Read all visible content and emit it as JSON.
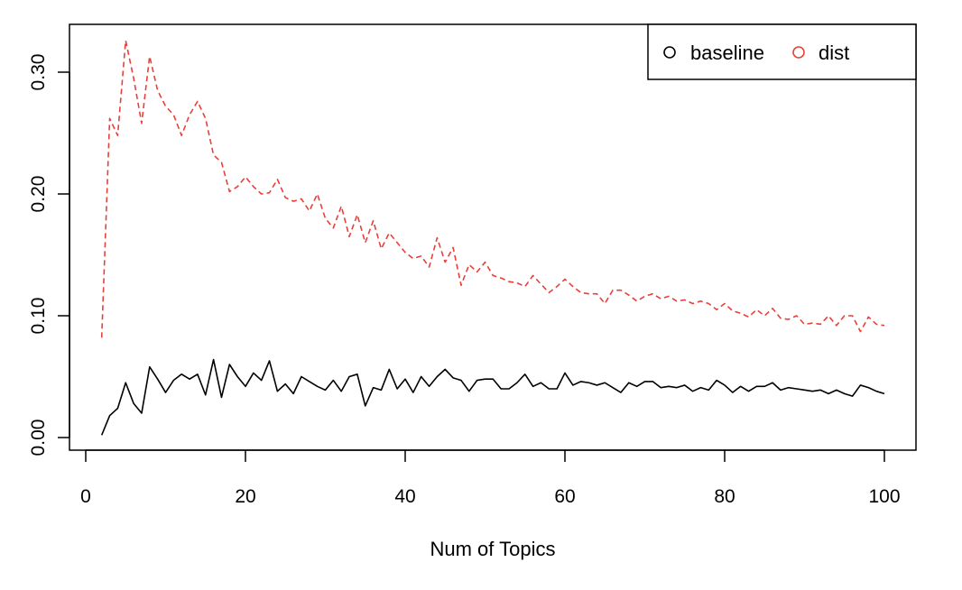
{
  "chart_data": {
    "type": "line",
    "title": "",
    "xlabel": "Num of Topics",
    "ylabel": "",
    "xlim": [
      0,
      100
    ],
    "ylim": [
      0,
      0.3
    ],
    "x_ticks": [
      0,
      20,
      40,
      60,
      80,
      100
    ],
    "y_ticks": [
      0.0,
      0.1,
      0.2,
      0.3
    ],
    "x_tick_labels": [
      "0",
      "20",
      "40",
      "60",
      "80",
      "100"
    ],
    "y_tick_labels": [
      "0.00",
      "0.10",
      "0.20",
      "0.30"
    ],
    "grid": false,
    "legend_position": "top-right",
    "x": [
      2,
      3,
      4,
      5,
      6,
      7,
      8,
      9,
      10,
      11,
      12,
      13,
      14,
      15,
      16,
      17,
      18,
      19,
      20,
      21,
      22,
      23,
      24,
      25,
      26,
      27,
      28,
      29,
      30,
      31,
      32,
      33,
      34,
      35,
      36,
      37,
      38,
      39,
      40,
      41,
      42,
      43,
      44,
      45,
      46,
      47,
      48,
      49,
      50,
      51,
      52,
      53,
      54,
      55,
      56,
      57,
      58,
      59,
      60,
      61,
      62,
      63,
      64,
      65,
      66,
      67,
      68,
      69,
      70,
      71,
      72,
      73,
      74,
      75,
      76,
      77,
      78,
      79,
      80,
      81,
      82,
      83,
      84,
      85,
      86,
      87,
      88,
      89,
      90,
      91,
      92,
      93,
      94,
      95,
      96,
      97,
      98,
      99,
      100
    ],
    "series": [
      {
        "name": "baseline",
        "color": "#000000",
        "dash": "solid",
        "values": [
          0.002,
          0.018,
          0.024,
          0.045,
          0.028,
          0.02,
          0.058,
          0.048,
          0.037,
          0.047,
          0.052,
          0.048,
          0.052,
          0.035,
          0.064,
          0.033,
          0.06,
          0.05,
          0.042,
          0.053,
          0.047,
          0.063,
          0.038,
          0.044,
          0.036,
          0.05,
          0.046,
          0.042,
          0.039,
          0.047,
          0.038,
          0.05,
          0.052,
          0.026,
          0.041,
          0.039,
          0.056,
          0.04,
          0.048,
          0.037,
          0.05,
          0.042,
          0.05,
          0.056,
          0.049,
          0.047,
          0.038,
          0.047,
          0.048,
          0.048,
          0.04,
          0.04,
          0.045,
          0.052,
          0.042,
          0.045,
          0.04,
          0.04,
          0.053,
          0.043,
          0.046,
          0.045,
          0.043,
          0.045,
          0.041,
          0.037,
          0.045,
          0.042,
          0.046,
          0.046,
          0.041,
          0.042,
          0.041,
          0.043,
          0.038,
          0.041,
          0.039,
          0.047,
          0.043,
          0.037,
          0.042,
          0.038,
          0.042,
          0.042,
          0.045,
          0.039,
          0.041,
          0.04,
          0.039,
          0.038,
          0.039,
          0.036,
          0.039,
          0.036,
          0.034,
          0.043,
          0.041,
          0.038,
          0.036
        ]
      },
      {
        "name": "dist",
        "color": "#e8403a",
        "dash": "dashed",
        "values": [
          0.082,
          0.262,
          0.248,
          0.326,
          0.295,
          0.258,
          0.313,
          0.285,
          0.272,
          0.265,
          0.248,
          0.265,
          0.276,
          0.262,
          0.232,
          0.226,
          0.202,
          0.206,
          0.214,
          0.206,
          0.2,
          0.201,
          0.212,
          0.197,
          0.194,
          0.196,
          0.186,
          0.2,
          0.18,
          0.172,
          0.19,
          0.165,
          0.183,
          0.16,
          0.178,
          0.155,
          0.168,
          0.16,
          0.152,
          0.147,
          0.149,
          0.14,
          0.164,
          0.144,
          0.156,
          0.125,
          0.142,
          0.136,
          0.144,
          0.133,
          0.131,
          0.128,
          0.127,
          0.124,
          0.133,
          0.126,
          0.119,
          0.124,
          0.13,
          0.124,
          0.119,
          0.118,
          0.118,
          0.11,
          0.121,
          0.121,
          0.117,
          0.112,
          0.116,
          0.118,
          0.114,
          0.116,
          0.112,
          0.113,
          0.11,
          0.112,
          0.11,
          0.105,
          0.11,
          0.104,
          0.102,
          0.099,
          0.105,
          0.1,
          0.106,
          0.098,
          0.097,
          0.1,
          0.093,
          0.094,
          0.093,
          0.1,
          0.092,
          0.1,
          0.1,
          0.087,
          0.099,
          0.093,
          0.092
        ]
      }
    ]
  }
}
